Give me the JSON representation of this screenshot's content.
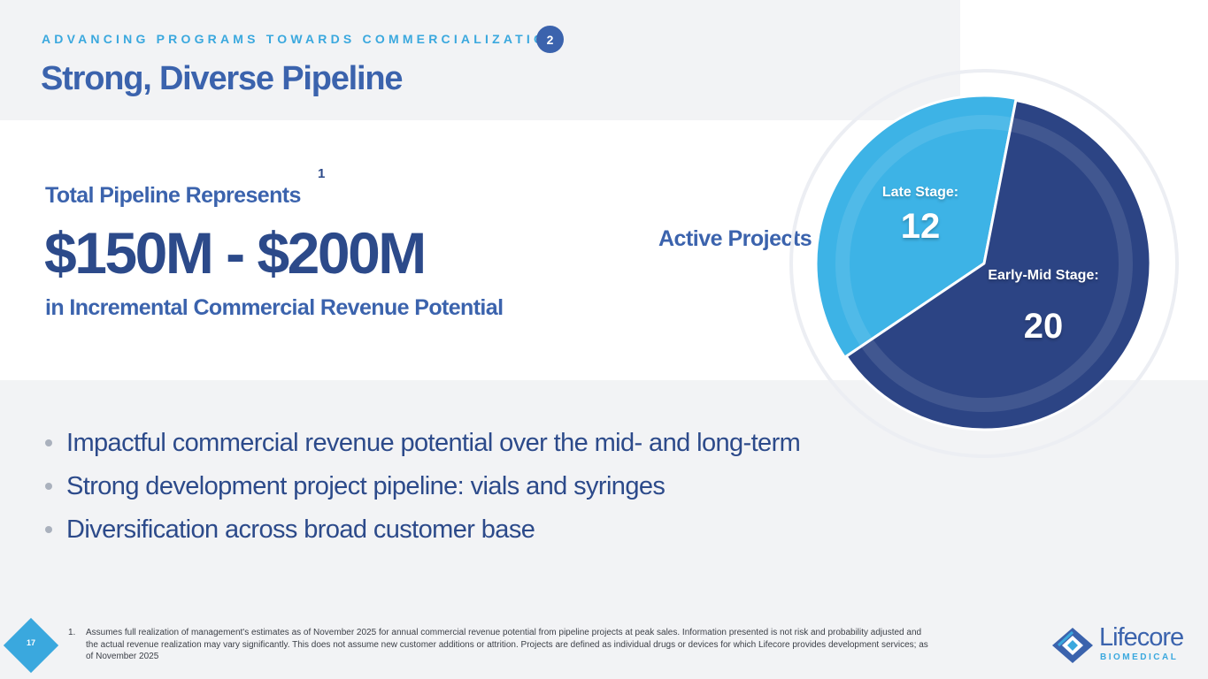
{
  "header": {
    "kicker": "ADVANCING PROGRAMS TOWARDS COMMERCIALIZATION",
    "section_number": "2",
    "title": "Strong, Diverse Pipeline"
  },
  "pipeline": {
    "label": "Total Pipeline Represents",
    "superscript": "1",
    "value": "$150M - $200M",
    "subtitle": "in Incremental Commercial Revenue Potential"
  },
  "chart_data": {
    "type": "pie",
    "title": "Active Projects",
    "slices": [
      {
        "label": "Late Stage:",
        "value": 12,
        "color": "#3db3e6"
      },
      {
        "label": "Early-Mid Stage:",
        "value": 20,
        "color": "#2c4484"
      }
    ]
  },
  "bullets": [
    "Impactful commercial revenue potential over the mid- and long-term",
    "Strong development project pipeline: vials and syringes",
    "Diversification across broad customer base"
  ],
  "footer": {
    "page_number": "17",
    "footnote_number": "1.",
    "footnote_text": "Assumes full realization of management's estimates as of November 2025 for annual commercial revenue potential from pipeline projects at peak sales. Information presented is not risk and probability adjusted and the actual revenue realization may vary significantly. This does not assume new customer additions or attrition.  Projects are defined as individual drugs or devices for which Lifecore provides development services; as of November 2025",
    "logo_name": "Lifecore",
    "logo_sub": "BIOMEDICAL"
  },
  "colors": {
    "brand_blue": "#3b63ad",
    "navy": "#2c4a8a",
    "sky": "#3aa8de"
  }
}
